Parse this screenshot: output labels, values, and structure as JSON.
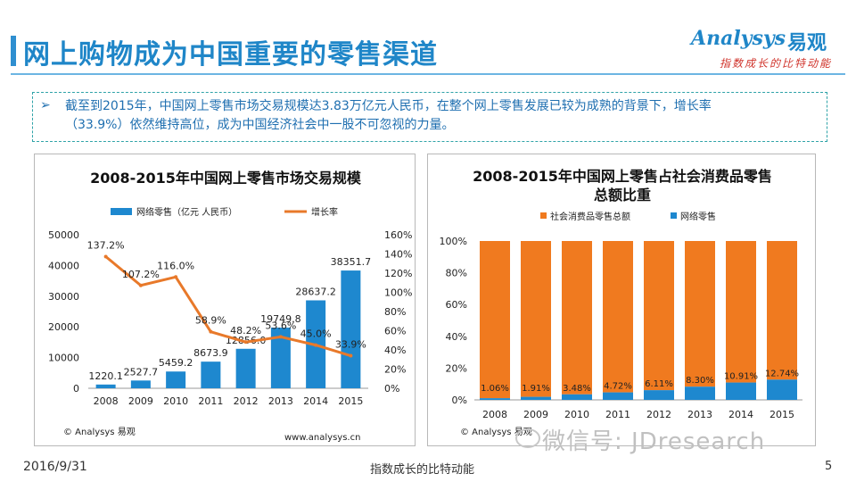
{
  "page": {
    "title": "网上购物成为中国重要的零售渠道",
    "summary_line1": "截至到2015年，中国网上零售市场交易规模达3.83万亿元人民币，在整个网上零售发展已较为成熟的背景下，增长率",
    "summary_line2": "（33.9%）依然维持高位，成为中国经济社会中一股不可忽视的力量。",
    "summary_bullet": "➢",
    "date": "2016/9/31",
    "slogan": "指数成长的比特动能",
    "page_number": "5",
    "wechat": "微信号: JDresearch"
  },
  "logo": {
    "word": "Analysys",
    "cn": "易观",
    "slogan": "指数成长的比特动能"
  },
  "colors": {
    "accent": "#1f86c8",
    "bar_blue": "#1e88cf",
    "line_orange": "#e8792a",
    "bar_orange": "#f07a1f"
  },
  "chart_data": [
    {
      "type": "bar",
      "title": "2008-2015年中国网上零售市场交易规模",
      "categories": [
        "2008",
        "2009",
        "2010",
        "2011",
        "2012",
        "2013",
        "2014",
        "2015"
      ],
      "series": [
        {
          "name": "网络零售（亿元 人民币）",
          "values": [
            1220.1,
            2527.7,
            5459.2,
            8673.9,
            12856.0,
            19749.8,
            28637.2,
            38351.7
          ],
          "labels": [
            "1220.1",
            "2527.7",
            "5459.2",
            "8673.9",
            "12856.0",
            "19749.8",
            "28637.2",
            "38351.7"
          ]
        },
        {
          "name": "增长率",
          "type": "line",
          "axis": "right",
          "values": [
            137.2,
            107.2,
            116.0,
            58.9,
            48.2,
            53.6,
            45.0,
            33.9
          ],
          "labels": [
            "137.2%",
            "107.2%",
            "116.0%",
            "58.9%",
            "48.2%",
            "53.6%",
            "45.0%",
            "33.9%"
          ]
        }
      ],
      "ylim": [
        0,
        50000
      ],
      "y_ticks": [
        "0",
        "10000",
        "20000",
        "30000",
        "40000",
        "50000"
      ],
      "y2lim": [
        0,
        160
      ],
      "y2_ticks": [
        "0%",
        "20%",
        "40%",
        "60%",
        "80%",
        "100%",
        "120%",
        "140%",
        "160%"
      ],
      "legend": "top",
      "source": "© Analysys 易观",
      "site": "www.analysys.cn"
    },
    {
      "type": "bar",
      "title_line1": "2008-2015年中国网上零售占社会消费品零售",
      "title_line2": "总额比重",
      "categories": [
        "2008",
        "2009",
        "2010",
        "2011",
        "2012",
        "2013",
        "2014",
        "2015"
      ],
      "series": [
        {
          "name": "社会消费品零售总额",
          "values": [
            98.94,
            98.09,
            96.52,
            95.28,
            93.89,
            91.7,
            89.09,
            87.26
          ]
        },
        {
          "name": "网络零售",
          "values": [
            1.06,
            1.91,
            3.48,
            4.72,
            6.11,
            8.3,
            10.91,
            12.74
          ],
          "labels": [
            "1.06%",
            "1.91%",
            "3.48%",
            "4.72%",
            "6.11%",
            "8.30%",
            "10.91%",
            "12.74%"
          ]
        }
      ],
      "stacked": true,
      "ylim": [
        0,
        100
      ],
      "y_ticks": [
        "0%",
        "20%",
        "40%",
        "60%",
        "80%",
        "100%"
      ],
      "legend": "top",
      "source": "© Analysys 易观"
    }
  ]
}
